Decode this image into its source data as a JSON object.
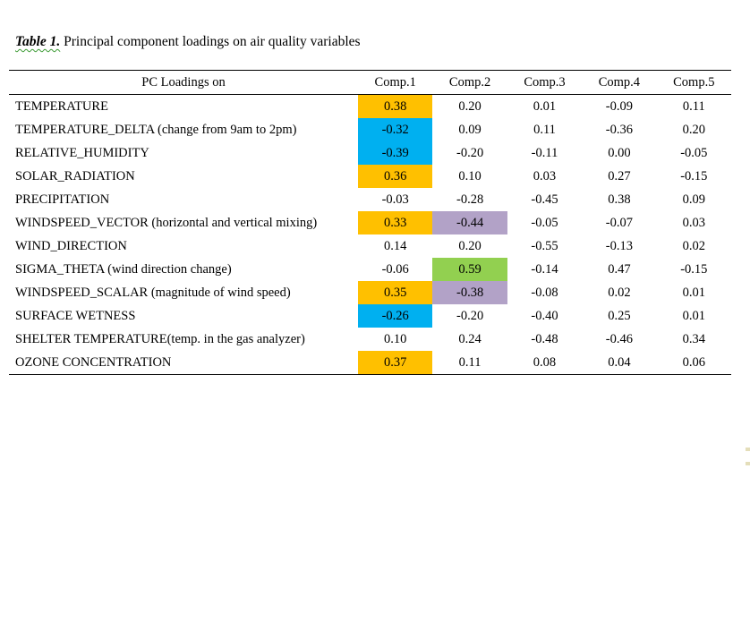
{
  "page": {
    "title_label": "Table 1.",
    "title_text": " Principal component loadings on air quality variables"
  },
  "table": {
    "corner_header": "PC Loadings on",
    "col_headers": [
      "Comp.1",
      "Comp.2",
      "Comp.3",
      "Comp.4",
      "Comp.5"
    ],
    "rows": [
      {
        "label": "TEMPERATURE",
        "values": [
          "0.38",
          "0.20",
          "0.01",
          "-0.09",
          "0.11"
        ],
        "highlights": [
          "orange",
          null,
          null,
          null,
          null
        ]
      },
      {
        "label": "TEMPERATURE_DELTA (change from 9am to 2pm)",
        "values": [
          "-0.32",
          "0.09",
          "0.11",
          "-0.36",
          "0.20"
        ],
        "highlights": [
          "blue",
          null,
          null,
          null,
          null
        ]
      },
      {
        "label": "RELATIVE_HUMIDITY",
        "values": [
          "-0.39",
          "-0.20",
          "-0.11",
          "0.00",
          "-0.05"
        ],
        "highlights": [
          "blue",
          null,
          null,
          null,
          null
        ]
      },
      {
        "label": "SOLAR_RADIATION",
        "values": [
          "0.36",
          "0.10",
          "0.03",
          "0.27",
          "-0.15"
        ],
        "highlights": [
          "orange",
          null,
          null,
          null,
          null
        ]
      },
      {
        "label": "PRECIPITATION",
        "values": [
          "-0.03",
          "-0.28",
          "-0.45",
          "0.38",
          "0.09"
        ],
        "highlights": [
          null,
          null,
          null,
          null,
          null
        ]
      },
      {
        "label": "WINDSPEED_VECTOR (horizontal and vertical mixing)",
        "values": [
          "0.33",
          "-0.44",
          "-0.05",
          "-0.07",
          "0.03"
        ],
        "highlights": [
          "orange",
          "purple",
          null,
          null,
          null
        ]
      },
      {
        "label": "WIND_DIRECTION",
        "values": [
          "0.14",
          "0.20",
          "-0.55",
          "-0.13",
          "0.02"
        ],
        "highlights": [
          null,
          null,
          null,
          null,
          null
        ]
      },
      {
        "label": "SIGMA_THETA (wind direction change)",
        "values": [
          "-0.06",
          "0.59",
          "-0.14",
          "0.47",
          "-0.15"
        ],
        "highlights": [
          null,
          "green",
          null,
          null,
          null
        ]
      },
      {
        "label": "WINDSPEED_SCALAR (magnitude of wind speed)",
        "values": [
          "0.35",
          "-0.38",
          "-0.08",
          "0.02",
          "0.01"
        ],
        "highlights": [
          "orange",
          "purple",
          null,
          null,
          null
        ]
      },
      {
        "label": "SURFACE WETNESS",
        "values": [
          "-0.26",
          "-0.20",
          "-0.40",
          "0.25",
          "0.01"
        ],
        "highlights": [
          "blue",
          null,
          null,
          null,
          null
        ]
      },
      {
        "label": "SHELTER TEMPERATURE(temp. in the gas analyzer)",
        "values": [
          "0.10",
          "0.24",
          "-0.48",
          "-0.46",
          "0.34"
        ],
        "highlights": [
          null,
          null,
          null,
          null,
          null
        ]
      },
      {
        "label": "OZONE CONCENTRATION",
        "values": [
          "0.37",
          "0.11",
          "0.08",
          "0.04",
          "0.06"
        ],
        "highlights": [
          "orange",
          null,
          null,
          null,
          null
        ]
      }
    ]
  },
  "colors": {
    "orange": "#FFC000",
    "blue": "#00B0F0",
    "green": "#92D050",
    "purple": "#B2A2C7",
    "underline_green": "#3C9B35"
  }
}
